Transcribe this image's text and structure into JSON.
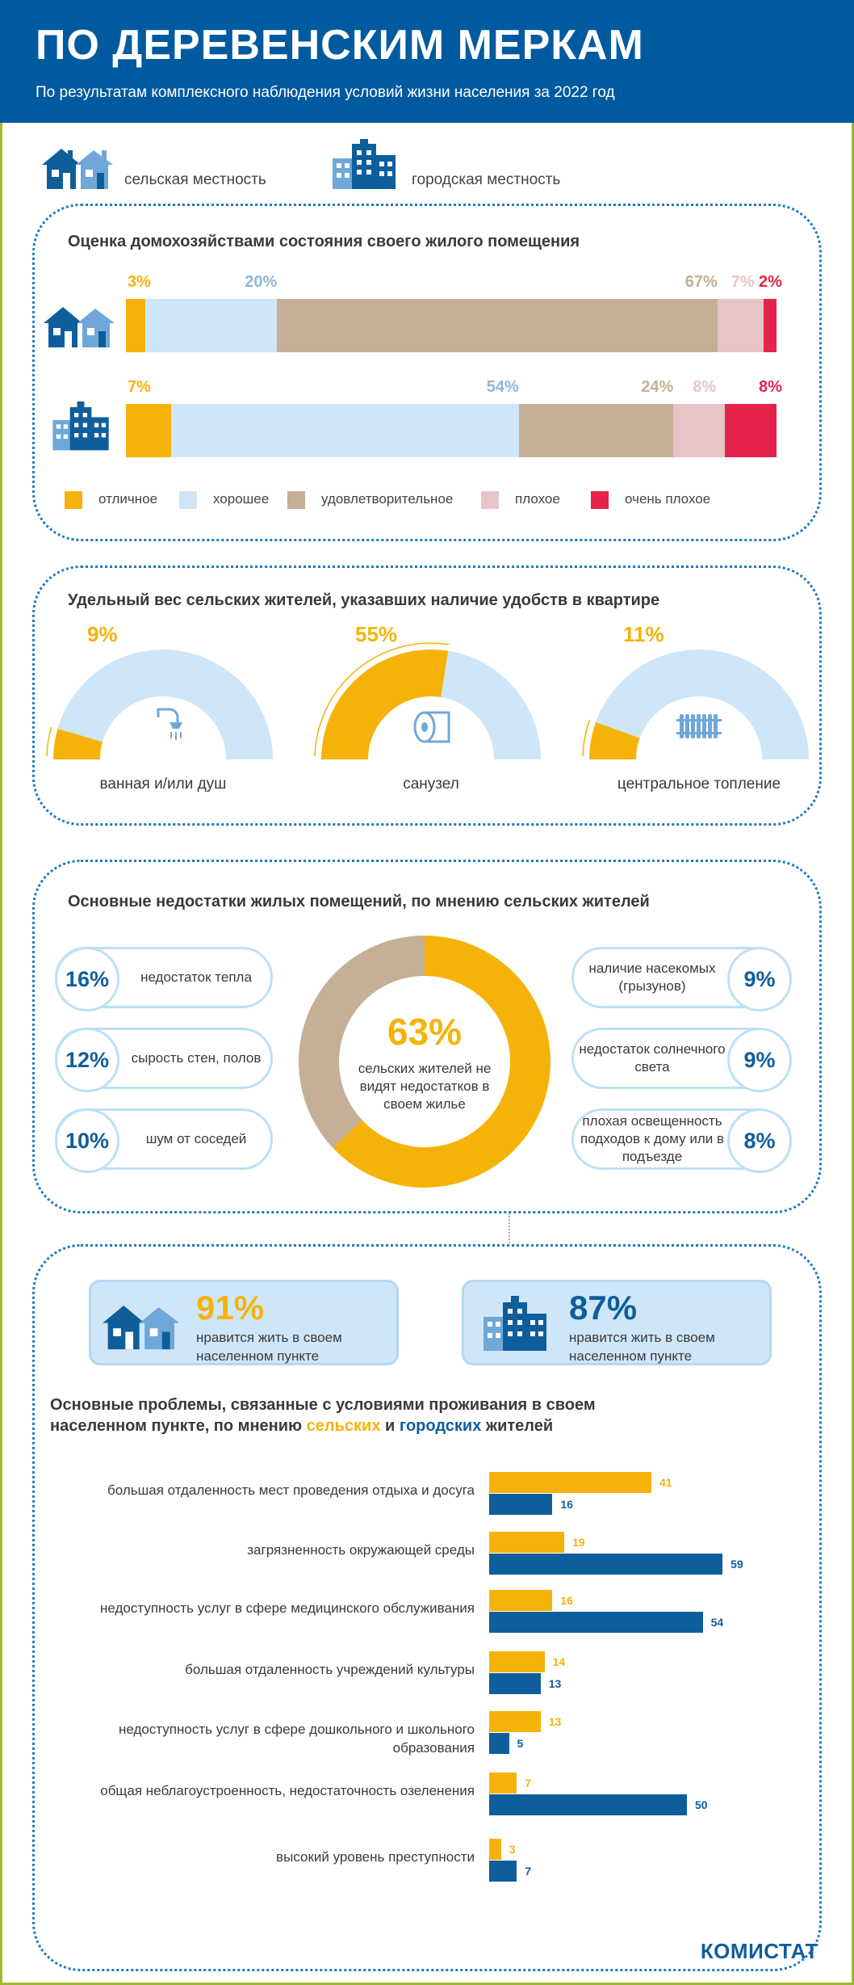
{
  "header": {
    "title": "ПО ДЕРЕВЕНСКИМ МЕРКАМ",
    "subtitle": "По результатам комплексного наблюдения условий жизни населения за 2022 год"
  },
  "legend_top": {
    "rural": "сельская местность",
    "urban": "городская местность",
    "rural_icon": "village-houses-icon",
    "urban_icon": "city-buildings-icon"
  },
  "colors": {
    "yellow": "#f5b30a",
    "lightblue": "#cfe6f8",
    "beige": "#c5af96",
    "pink": "#e9c4c7",
    "red": "#e5234b",
    "blue": "#0f5e9c"
  },
  "housing_assessment": {
    "title": "Оценка домохозяйствами  состояния своего жилого помещения",
    "categories": [
      "отличное",
      "хорошее",
      "удовлетворительное",
      "плохое",
      "очень плохое"
    ],
    "rows": [
      {
        "name": "сельская местность",
        "values": [
          3,
          20,
          67,
          7,
          2
        ],
        "labels": [
          "3%",
          "20%",
          "67%",
          "7%",
          "2%"
        ]
      },
      {
        "name": "городская местность",
        "values": [
          7,
          54,
          24,
          8,
          8
        ],
        "labels": [
          "7%",
          "54%",
          "24%",
          "8%",
          "8%"
        ]
      }
    ]
  },
  "amenities": {
    "title": "Удельный вес сельских жителей, указавших наличие удобств  в квартире",
    "items": [
      {
        "label": "ванная и/или душ",
        "value": 9,
        "value_label": "9%",
        "icon": "shower-icon"
      },
      {
        "label": "санузел",
        "value": 55,
        "value_label": "55%",
        "icon": "toilet-paper-icon"
      },
      {
        "label": "центральное  топление",
        "value": 11,
        "value_label": "11%",
        "icon": "radiator-icon"
      }
    ]
  },
  "shortcomings": {
    "title": "Основные недостатки жилых помещений, по мнению сельских жителей",
    "center_value": "63%",
    "center_text": "сельских жителей не видят недостатков в своем жилье",
    "donut_value": 63,
    "left": [
      {
        "value": "16%",
        "text": "недостаток тепла"
      },
      {
        "value": "12%",
        "text": "сырость стен, полов"
      },
      {
        "value": "10%",
        "text": "шум от соседей"
      }
    ],
    "right": [
      {
        "value": "9%",
        "text": "наличие насекомых (грызунов)"
      },
      {
        "value": "9%",
        "text": "недостаток солнечного света"
      },
      {
        "value": "8%",
        "text": "плохая освещенность подходов к дому или в подъезде"
      }
    ]
  },
  "like_living": {
    "rural": {
      "value": "91%",
      "text": "нравится жить в своем населенном пункте"
    },
    "urban": {
      "value": "87%",
      "text": "нравится жить в своем населенном пункте"
    }
  },
  "problems": {
    "title_part1": "Основные проблемы, связанные с условиями проживания в своем населенном пункте, по мнению ",
    "title_rural": "сельских",
    "title_and": " и ",
    "title_urban": "городских",
    "title_end": " жителей"
  },
  "chart_data": {
    "type": "bar",
    "orientation": "horizontal",
    "categories": [
      "большая отдаленность мест проведения отдыха и досуга",
      "загрязненность окружающей среды",
      "недоступность услуг в сфере медицинского обслуживания",
      "большая отдаленность учреждений культуры",
      "недоступность  услуг в сфере дошкольного и школьного образования",
      "общая неблагоустроенность, недостаточность озеленения",
      "высокий уровень преступности"
    ],
    "series": [
      {
        "name": "сельских",
        "color": "#f5b30a",
        "values": [
          41,
          19,
          16,
          14,
          13,
          7,
          3
        ]
      },
      {
        "name": "городских",
        "color": "#0f5e9c",
        "values": [
          16,
          59,
          54,
          13,
          5,
          50,
          7
        ]
      }
    ],
    "xlim": [
      0,
      65
    ],
    "grid": false,
    "data_labels": true
  },
  "footer": {
    "logo": "КОМИСТАТ"
  }
}
